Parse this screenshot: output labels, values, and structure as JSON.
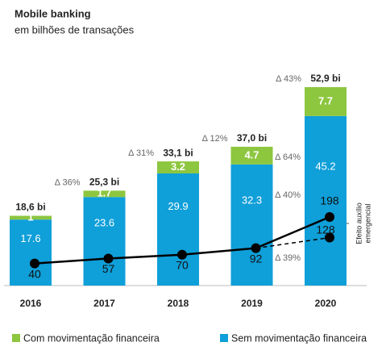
{
  "chart_data": {
    "type": "bar",
    "title": "Mobile banking",
    "subtitle": "em bilhões de transações",
    "categories": [
      "2016",
      "2017",
      "2018",
      "2019",
      "2020"
    ],
    "ylim": [
      0,
      60
    ],
    "y2lim": [
      -35,
      730
    ],
    "series": [
      {
        "name": "Sem movimentação financeira",
        "color": "#0f9fd9",
        "values": [
          17.6,
          23.6,
          29.9,
          32.3,
          45.2
        ]
      },
      {
        "name": "Com movimentação financeira",
        "color": "#8dc63f",
        "values": [
          1,
          1.7,
          3.2,
          4.7,
          7.7
        ]
      }
    ],
    "totals": {
      "values": [
        18.6,
        25.3,
        33.1,
        37.0,
        52.9
      ],
      "value_labels": [
        "18,6 bi",
        "25,3 bi",
        "33,1 bi",
        "37,0 bi",
        "52,9 bi"
      ]
    },
    "growth": {
      "values": [
        36,
        31,
        12,
        43
      ],
      "value_labels": [
        "Δ 36%",
        "Δ 31%",
        "Δ 12%",
        "Δ 43%"
      ]
    },
    "lines": [
      {
        "type": "line",
        "axis": "y2",
        "color": "#000000",
        "dashed": false,
        "values": [
          40,
          57,
          70,
          92,
          198
        ]
      },
      {
        "type": "line",
        "axis": "y2",
        "color": "#000000",
        "dashed": true,
        "values": [
          null,
          null,
          null,
          92,
          128
        ]
      }
    ],
    "annotations": [
      {
        "value": 64,
        "label": "Δ 64%"
      },
      {
        "value": 40,
        "label": "Δ 40%"
      },
      {
        "value": 39,
        "label": "Δ 39%"
      }
    ],
    "bracket_label": [
      "Efeito auxílio",
      "emergencial"
    ]
  }
}
